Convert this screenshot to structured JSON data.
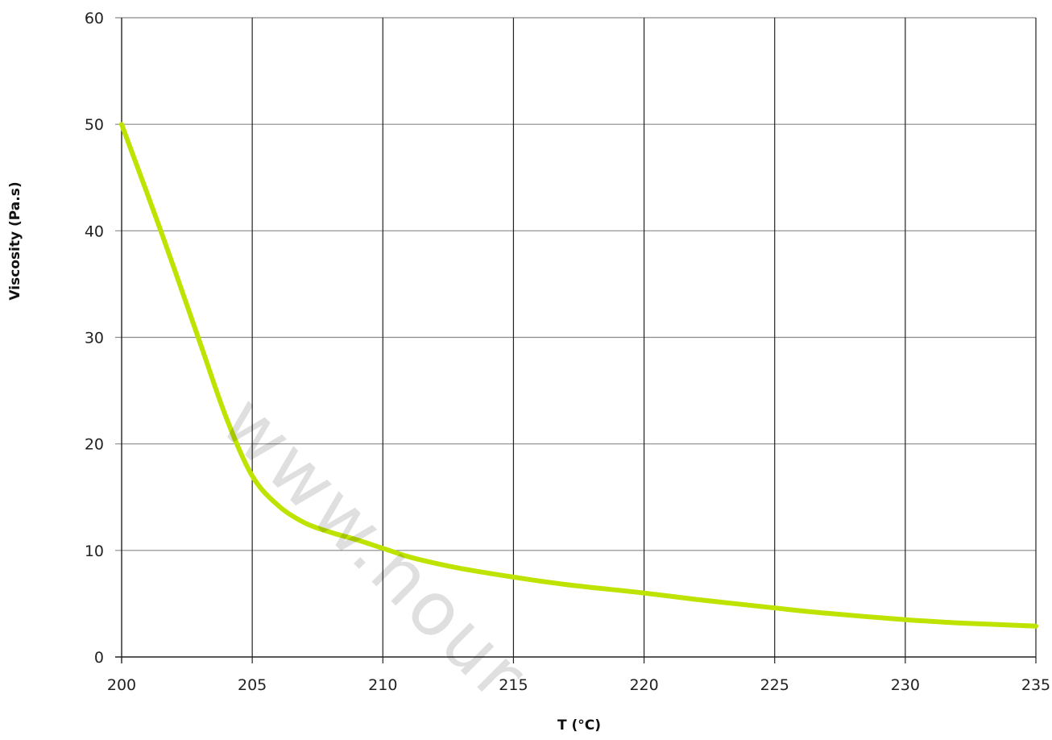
{
  "chart_data": {
    "type": "line",
    "title": "",
    "xlabel": "T (°C)",
    "ylabel": "Viscosity (Pa.s)",
    "xlim": [
      200,
      235
    ],
    "ylim": [
      0,
      60
    ],
    "x_ticks": [
      200,
      205,
      210,
      215,
      220,
      225,
      230,
      235
    ],
    "y_ticks": [
      0,
      10,
      20,
      30,
      40,
      50,
      60
    ],
    "grid": true,
    "legend": "none",
    "series": [
      {
        "color": "#bfe300",
        "x": [
          200,
          201.5,
          203,
          204,
          205,
          206,
          207,
          208,
          209,
          210,
          211,
          212,
          213,
          215,
          217,
          220,
          222,
          225,
          227,
          230,
          232,
          235
        ],
        "y": [
          50,
          40,
          29.5,
          22.5,
          17,
          14.2,
          12.6,
          11.7,
          11,
          10.2,
          9.4,
          8.8,
          8.3,
          7.5,
          6.8,
          6,
          5.4,
          4.6,
          4.1,
          3.5,
          3.2,
          2.9
        ]
      }
    ]
  },
  "watermark": "www.nour"
}
